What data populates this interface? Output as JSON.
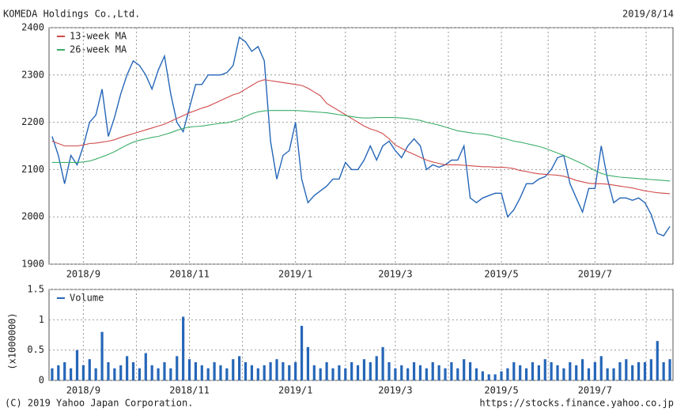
{
  "header": {
    "title": "KOMEDA Holdings Co.,Ltd.",
    "date": "2019/8/14"
  },
  "footer": {
    "copyright": "(C) 2019 Yahoo Japan Corporation.",
    "url": "https://stocks.finance.yahoo.co.jp"
  },
  "chart_data": [
    {
      "type": "line",
      "categories": [
        null,
        null,
        null,
        null,
        null,
        "2018/9",
        null,
        null,
        null,
        null,
        null,
        null,
        null,
        null,
        null,
        null,
        null,
        null,
        null,
        null,
        null,
        null,
        "2018/11",
        null,
        null,
        null,
        null,
        null,
        null,
        null,
        null,
        null,
        null,
        null,
        null,
        null,
        null,
        null,
        null,
        "2019/1",
        null,
        null,
        null,
        null,
        null,
        null,
        null,
        null,
        null,
        null,
        null,
        null,
        null,
        null,
        null,
        "2019/3",
        null,
        null,
        null,
        null,
        null,
        null,
        null,
        null,
        null,
        null,
        null,
        null,
        null,
        null,
        null,
        null,
        "2019/5",
        null,
        null,
        null,
        null,
        null,
        null,
        null,
        null,
        null,
        null,
        null,
        null,
        null,
        null,
        "2019/7",
        null,
        null,
        null,
        null,
        null,
        null,
        null,
        null,
        null,
        null,
        null,
        null
      ],
      "series": [
        {
          "color": "#2566b8",
          "values": [
            2170,
            2130,
            2070,
            2130,
            2110,
            2150,
            2200,
            2215,
            2270,
            2170,
            2210,
            2260,
            2300,
            2330,
            2320,
            2300,
            2270,
            2310,
            2340,
            2260,
            2200,
            2180,
            2230,
            2280,
            2280,
            2300,
            2300,
            2300,
            2305,
            2320,
            2380,
            2370,
            2350,
            2360,
            2330,
            2160,
            2080,
            2130,
            2140,
            2200,
            2080,
            2030,
            2045,
            2055,
            2065,
            2080,
            2080,
            2115,
            2100,
            2100,
            2120,
            2150,
            2120,
            2150,
            2160,
            2140,
            2125,
            2150,
            2165,
            2150,
            2100,
            2110,
            2105,
            2110,
            2120,
            2120,
            2150,
            2040,
            2030,
            2040,
            2045,
            2050,
            2050,
            2000,
            2015,
            2040,
            2070,
            2070,
            2080,
            2085,
            2100,
            2125,
            2130,
            2070,
            2040,
            2010,
            2060,
            2060,
            2150,
            2080,
            2030,
            2040,
            2040,
            2035,
            2040,
            2030,
            2005,
            1965,
            1960,
            1980
          ]
        },
        {
          "name": "13-week MA",
          "color": "#d04a4a",
          "values": [
            2160,
            2155,
            2150,
            2150,
            2150,
            2152,
            2155,
            2156,
            2158,
            2160,
            2163,
            2168,
            2172,
            2176,
            2180,
            2184,
            2188,
            2192,
            2196,
            2202,
            2208,
            2214,
            2220,
            2225,
            2230,
            2234,
            2240,
            2246,
            2252,
            2258,
            2262,
            2270,
            2278,
            2286,
            2290,
            2288,
            2286,
            2284,
            2282,
            2280,
            2278,
            2272,
            2264,
            2256,
            2240,
            2232,
            2224,
            2216,
            2208,
            2200,
            2192,
            2186,
            2182,
            2176,
            2165,
            2152,
            2145,
            2138,
            2132,
            2126,
            2120,
            2116,
            2113,
            2110,
            2110,
            2110,
            2109,
            2108,
            2107,
            2106,
            2106,
            2105,
            2105,
            2104,
            2102,
            2098,
            2096,
            2093,
            2091,
            2090,
            2089,
            2088,
            2086,
            2082,
            2077,
            2074,
            2071,
            2070,
            2070,
            2069,
            2067,
            2065,
            2063,
            2061,
            2058,
            2055,
            2053,
            2051,
            2050,
            2049
          ]
        },
        {
          "name": "26-week MA",
          "color": "#3cae6a",
          "values": [
            2115,
            2115,
            2115,
            2115,
            2115,
            2116,
            2118,
            2122,
            2127,
            2132,
            2138,
            2145,
            2152,
            2158,
            2162,
            2165,
            2168,
            2170,
            2174,
            2178,
            2183,
            2187,
            2190,
            2191,
            2192,
            2194,
            2196,
            2198,
            2199,
            2202,
            2206,
            2212,
            2218,
            2222,
            2224,
            2225,
            2225,
            2225,
            2225,
            2225,
            2224,
            2223,
            2222,
            2221,
            2220,
            2218,
            2216,
            2214,
            2212,
            2210,
            2209,
            2209,
            2210,
            2210,
            2210,
            2210,
            2209,
            2208,
            2206,
            2204,
            2200,
            2197,
            2194,
            2190,
            2186,
            2182,
            2180,
            2178,
            2176,
            2175,
            2173,
            2170,
            2167,
            2164,
            2160,
            2158,
            2155,
            2152,
            2149,
            2145,
            2140,
            2135,
            2130,
            2124,
            2118,
            2112,
            2105,
            2098,
            2092,
            2088,
            2086,
            2084,
            2083,
            2082,
            2081,
            2080,
            2079,
            2078,
            2077,
            2076
          ]
        }
      ],
      "ylim": [
        1900,
        2400
      ],
      "yticks": [
        1900,
        2000,
        2100,
        2200,
        2300,
        2400
      ],
      "grid": true,
      "legend": "upper left"
    },
    {
      "type": "bar",
      "y_label": "(x1000000)",
      "categories": [
        null,
        null,
        null,
        null,
        null,
        "2018/9",
        null,
        null,
        null,
        null,
        null,
        null,
        null,
        null,
        null,
        null,
        null,
        null,
        null,
        null,
        null,
        null,
        "2018/11",
        null,
        null,
        null,
        null,
        null,
        null,
        null,
        null,
        null,
        null,
        null,
        null,
        null,
        null,
        null,
        null,
        "2019/1",
        null,
        null,
        null,
        null,
        null,
        null,
        null,
        null,
        null,
        null,
        null,
        null,
        null,
        null,
        null,
        "2019/3",
        null,
        null,
        null,
        null,
        null,
        null,
        null,
        null,
        null,
        null,
        null,
        null,
        null,
        null,
        null,
        null,
        "2019/5",
        null,
        null,
        null,
        null,
        null,
        null,
        null,
        null,
        null,
        null,
        null,
        null,
        null,
        null,
        "2019/7",
        null,
        null,
        null,
        null,
        null,
        null,
        null,
        null,
        null,
        null,
        null,
        null
      ],
      "series": [
        {
          "name": "Volume",
          "color": "#2566b8",
          "values": [
            0.2,
            0.25,
            0.3,
            0.2,
            0.5,
            0.25,
            0.35,
            0.2,
            0.8,
            0.3,
            0.2,
            0.25,
            0.4,
            0.3,
            0.2,
            0.45,
            0.25,
            0.2,
            0.3,
            0.2,
            0.4,
            1.05,
            0.35,
            0.3,
            0.25,
            0.2,
            0.3,
            0.25,
            0.2,
            0.35,
            0.4,
            0.3,
            0.25,
            0.2,
            0.25,
            0.3,
            0.35,
            0.3,
            0.25,
            0.3,
            0.9,
            0.55,
            0.25,
            0.2,
            0.3,
            0.2,
            0.25,
            0.2,
            0.3,
            0.25,
            0.35,
            0.3,
            0.4,
            0.55,
            0.3,
            0.2,
            0.25,
            0.2,
            0.3,
            0.25,
            0.2,
            0.3,
            0.25,
            0.2,
            0.3,
            0.2,
            0.35,
            0.3,
            0.2,
            0.15,
            0.1,
            0.1,
            0.15,
            0.2,
            0.3,
            0.25,
            0.2,
            0.3,
            0.25,
            0.35,
            0.3,
            0.25,
            0.2,
            0.3,
            0.25,
            0.35,
            0.2,
            0.3,
            0.4,
            0.2,
            0.2,
            0.3,
            0.35,
            0.25,
            0.3,
            0.3,
            0.35,
            0.65,
            0.3,
            0.35
          ]
        }
      ],
      "ylim": [
        0,
        1.5
      ],
      "yticks": [
        0,
        0.5,
        1,
        1.5
      ],
      "grid": true,
      "legend": "upper left"
    }
  ]
}
